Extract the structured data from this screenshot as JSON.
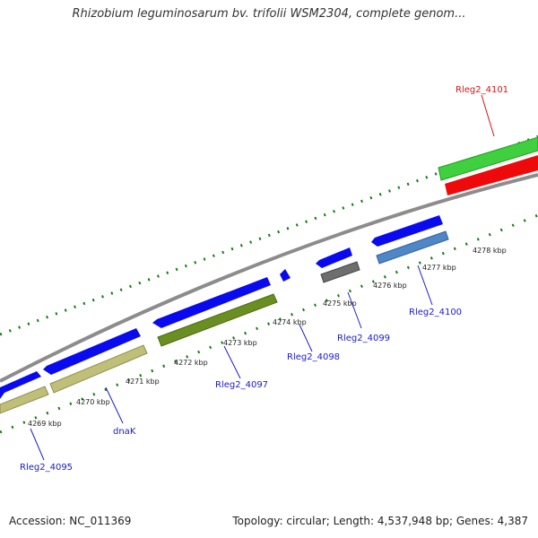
{
  "title": "Rhizobium leguminosarum bv. trifolii WSM2304, complete genom...",
  "footer": {
    "accession": "Accession: NC_011369",
    "stats": "Topology: circular; Length: 4,537,948 bp; Genes: 4,387"
  },
  "colors": {
    "backbone": "#8c8c8c",
    "tick": "#1a7a1a",
    "forward_gene": "#0a0aee",
    "cds_khaki": "#bfbf7a",
    "cds_olive": "#6b8e23",
    "cds_gray": "#6e6e6e",
    "cds_steel": "#4f86c6",
    "cds_green": "#3fcf3f",
    "cds_red": "#ee0a0a",
    "label_blue": "#1a1acc",
    "label_red": "#dd1111"
  },
  "scale_labels": [
    "4269 kbp",
    "4270 kbp",
    "4271 kbp",
    "4272 kbp",
    "4273 kbp",
    "4274 kbp",
    "4275 kbp",
    "4276 kbp",
    "4277 kbp",
    "4278 kbp"
  ],
  "genes": [
    {
      "name": "Rleg2_4095",
      "color": "blue"
    },
    {
      "name": "dnaK",
      "color": "blue"
    },
    {
      "name": "Rleg2_4097",
      "color": "blue"
    },
    {
      "name": "Rleg2_4098",
      "color": "blue"
    },
    {
      "name": "Rleg2_4099",
      "color": "blue"
    },
    {
      "name": "Rleg2_4100",
      "color": "blue"
    },
    {
      "name": "Rleg2_4101",
      "color": "red"
    }
  ]
}
